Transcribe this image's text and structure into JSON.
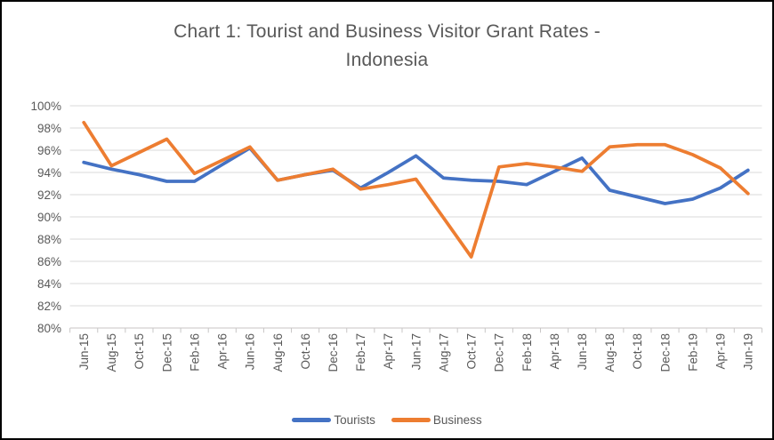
{
  "figure": {
    "title_line1": "Chart 1: Tourist and Business Visitor Grant Rates -",
    "title_line2": "Indonesia"
  },
  "legend": {
    "items": [
      {
        "label": "Tourists",
        "color": "#4472C4"
      },
      {
        "label": "Business",
        "color": "#ED7D31"
      }
    ]
  },
  "chart_data": {
    "type": "line",
    "title": "Chart 1: Tourist and Business Visitor Grant Rates - Indonesia",
    "categories": [
      "Jun-15",
      "Aug-15",
      "Oct-15",
      "Dec-15",
      "Feb-16",
      "Apr-16",
      "Jun-16",
      "Aug-16",
      "Oct-16",
      "Dec-16",
      "Feb-17",
      "Apr-17",
      "Jun-17",
      "Aug-17",
      "Oct-17",
      "Dec-17",
      "Feb-18",
      "Apr-18",
      "Jun-18",
      "Aug-18",
      "Oct-18",
      "Dec-18",
      "Feb-19",
      "Apr-19",
      "Jun-19"
    ],
    "series": [
      {
        "name": "Tourists",
        "color": "#4472C4",
        "values": [
          94.9,
          94.3,
          93.8,
          93.2,
          93.2,
          94.7,
          96.2,
          93.3,
          93.8,
          94.2,
          92.6,
          94.0,
          95.5,
          93.5,
          93.3,
          93.2,
          92.9,
          94.1,
          95.3,
          92.4,
          91.8,
          91.2,
          91.6,
          92.6,
          94.2
        ]
      },
      {
        "name": "Business",
        "color": "#ED7D31",
        "values": [
          98.5,
          94.6,
          95.8,
          97.0,
          93.9,
          95.1,
          96.3,
          93.3,
          93.8,
          94.3,
          92.5,
          92.9,
          93.4,
          89.9,
          86.4,
          94.5,
          94.8,
          94.5,
          94.1,
          96.3,
          96.5,
          96.5,
          95.6,
          94.4,
          92.1
        ]
      }
    ],
    "ylim": [
      80,
      100
    ],
    "y_ticks": [
      "100%",
      "98%",
      "96%",
      "94%",
      "92%",
      "90%",
      "88%",
      "86%",
      "84%",
      "82%",
      "80%"
    ],
    "y_tick_values": [
      100,
      98,
      96,
      94,
      92,
      90,
      88,
      86,
      84,
      82,
      80
    ],
    "xlabel": "",
    "ylabel": "",
    "grid": true,
    "legend_position": "bottom",
    "x_labels_rotated_degrees": 90,
    "colors": {
      "grid": "#D9D9D9",
      "axis": "#C8C6C6",
      "text": "#595959"
    }
  }
}
